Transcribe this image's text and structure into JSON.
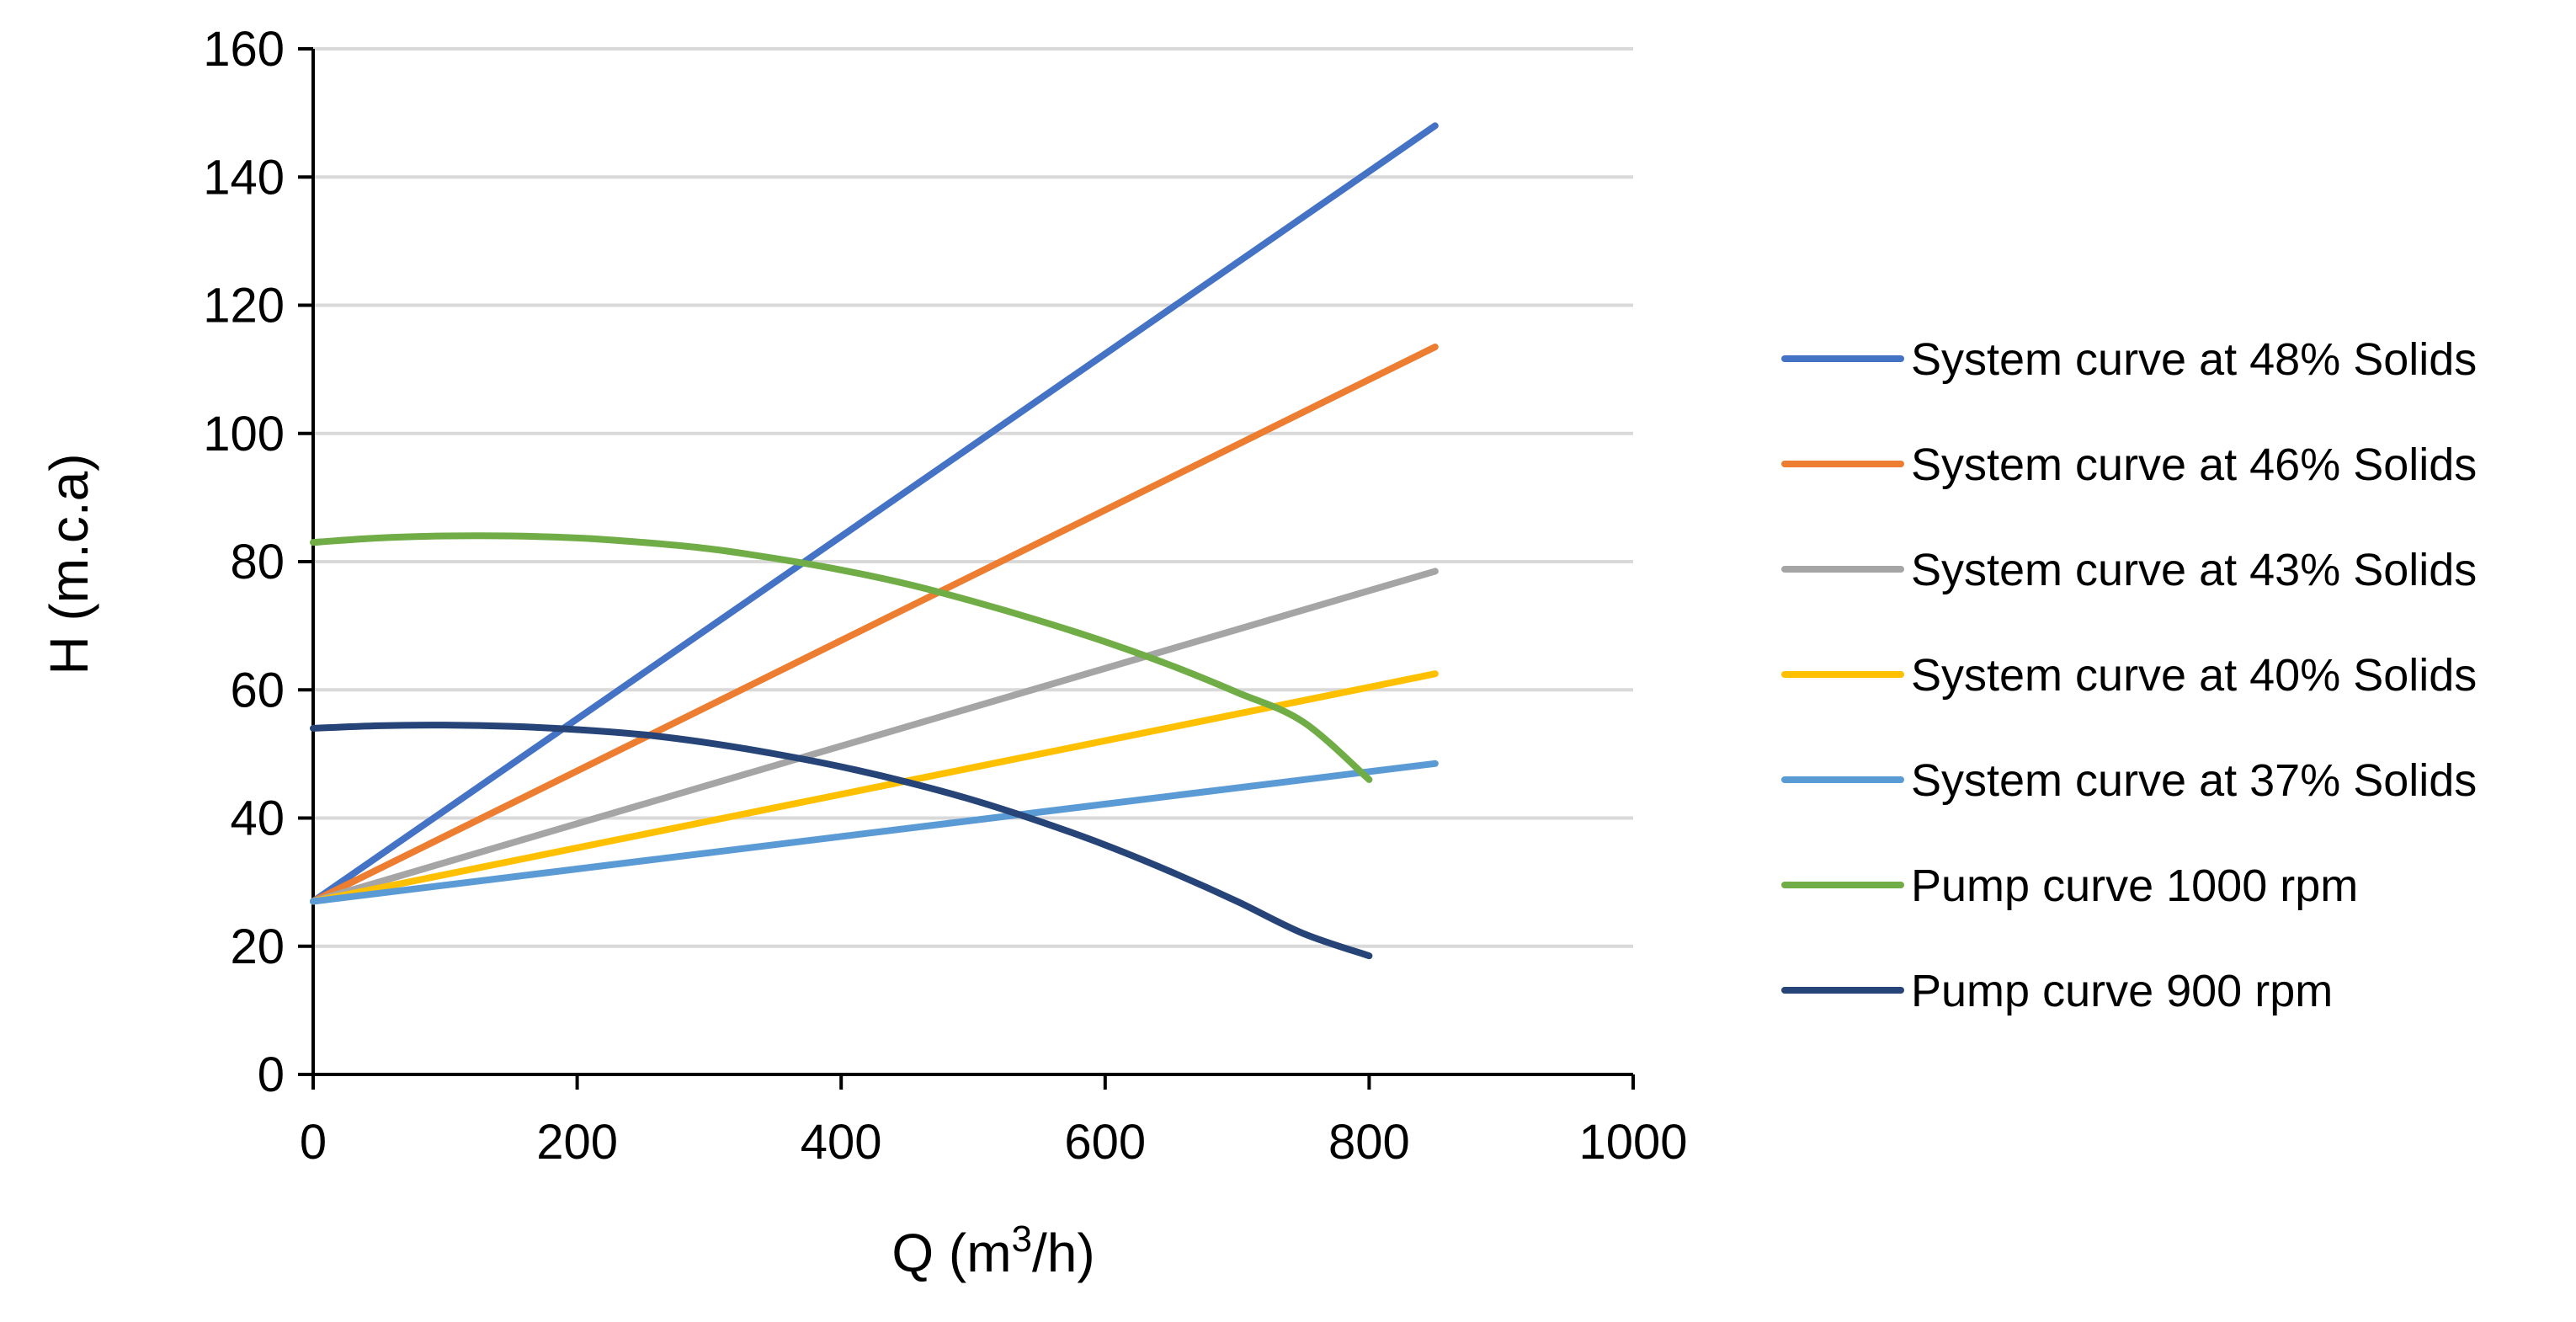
{
  "chart_data": {
    "type": "line",
    "title": "",
    "xlabel": {
      "base": "Q (m",
      "sup": "3",
      "tail": "/h)"
    },
    "ylabel": "H (m.c.a)",
    "xlim": [
      0,
      1000
    ],
    "ylim": [
      0,
      160
    ],
    "xticks": [
      0,
      200,
      400,
      600,
      800,
      1000
    ],
    "yticks": [
      0,
      20,
      40,
      60,
      80,
      100,
      120,
      140,
      160
    ],
    "xtick_labels": [
      "0",
      "200",
      "400",
      "600",
      "800",
      "1000"
    ],
    "ytick_labels": [
      "0",
      "20",
      "40",
      "60",
      "80",
      "100",
      "120",
      "140",
      "160"
    ],
    "grid": "horizontal",
    "legend_position": "right",
    "series": [
      {
        "name": "System curve at 48% Solids",
        "color": "#4472C4",
        "x": [
          0,
          850
        ],
        "y": [
          27,
          148
        ]
      },
      {
        "name": "System curve at 46% Solids",
        "color": "#ED7D31",
        "x": [
          0,
          850
        ],
        "y": [
          27,
          113.5
        ]
      },
      {
        "name": "System curve at 43% Solids",
        "color": "#A5A5A5",
        "x": [
          0,
          850
        ],
        "y": [
          27,
          78.5
        ]
      },
      {
        "name": "System curve at 40% Solids",
        "color": "#FFC000",
        "x": [
          0,
          850
        ],
        "y": [
          27,
          62.5
        ]
      },
      {
        "name": "System curve at 37% Solids",
        "color": "#5B9BD5",
        "x": [
          0,
          850
        ],
        "y": [
          27,
          48.5
        ]
      },
      {
        "name": "Pump curve 1000 rpm",
        "color": "#70AD47",
        "x": [
          0,
          50,
          100,
          150,
          200,
          250,
          300,
          350,
          400,
          450,
          500,
          550,
          600,
          650,
          700,
          750,
          800
        ],
        "y": [
          83.0,
          83.7,
          84.0,
          84.0,
          83.7,
          83.0,
          82.0,
          80.5,
          78.7,
          76.5,
          73.8,
          70.8,
          67.5,
          63.8,
          59.6,
          55.0,
          46.0
        ]
      },
      {
        "name": "Pump curve 900 rpm",
        "color": "#264478",
        "x": [
          0,
          50,
          100,
          150,
          200,
          250,
          300,
          350,
          400,
          450,
          500,
          550,
          600,
          650,
          700,
          750,
          800
        ],
        "y": [
          54.0,
          54.4,
          54.5,
          54.3,
          53.8,
          53.0,
          51.7,
          50.0,
          48.0,
          45.6,
          42.8,
          39.5,
          35.8,
          31.6,
          27.0,
          22.0,
          18.5
        ]
      }
    ]
  }
}
